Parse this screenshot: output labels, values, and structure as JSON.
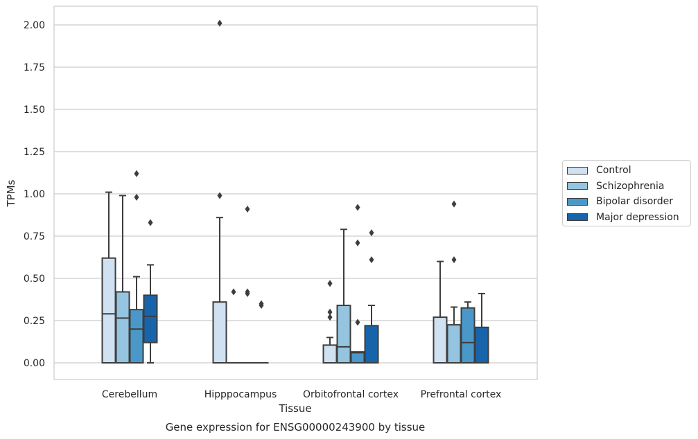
{
  "chart_data": {
    "type": "box",
    "title": "",
    "caption": "Gene expression for ENSG00000243900 by tissue",
    "xlabel": "Tissue",
    "ylabel": "TPMs",
    "ylim": [
      -0.1,
      2.1
    ],
    "yticks": [
      "0.00",
      "0.25",
      "0.50",
      "0.75",
      "1.00",
      "1.25",
      "1.50",
      "1.75",
      "2.00"
    ],
    "categories": [
      "Cerebellum",
      "Hipppocampus",
      "Orbitofrontal cortex",
      "Prefrontal cortex"
    ],
    "grid": "y",
    "legend_placement": "center-right outside",
    "series": [
      {
        "name": "Control",
        "color": "#d0e1f2",
        "boxes": [
          {
            "whislo": 0.0,
            "q1": 0.0,
            "med": 0.29,
            "q3": 0.62,
            "whishi": 1.01,
            "fliers": []
          },
          {
            "whislo": 0.0,
            "q1": 0.0,
            "med": 0.0,
            "q3": 0.36,
            "whishi": 0.86,
            "fliers": [
              0.99,
              2.01
            ]
          },
          {
            "whislo": 0.0,
            "q1": 0.0,
            "med": 0.0,
            "q3": 0.105,
            "whishi": 0.15,
            "fliers": [
              0.47,
              0.3,
              0.27
            ]
          },
          {
            "whislo": 0.0,
            "q1": 0.0,
            "med": 0.0,
            "q3": 0.27,
            "whishi": 0.6,
            "fliers": []
          }
        ]
      },
      {
        "name": "Schizophrenia",
        "color": "#94c4df",
        "boxes": [
          {
            "whislo": 0.0,
            "q1": 0.0,
            "med": 0.265,
            "q3": 0.42,
            "whishi": 0.99,
            "fliers": []
          },
          {
            "whislo": 0.0,
            "q1": 0.0,
            "med": 0.0,
            "q3": 0.0,
            "whishi": 0.0,
            "fliers": [
              0.42
            ]
          },
          {
            "whislo": 0.0,
            "q1": 0.0,
            "med": 0.095,
            "q3": 0.34,
            "whishi": 0.79,
            "fliers": []
          },
          {
            "whislo": 0.0,
            "q1": 0.0,
            "med": 0.0,
            "q3": 0.225,
            "whishi": 0.33,
            "fliers": [
              0.94,
              0.61
            ]
          }
        ]
      },
      {
        "name": "Bipolar disorder",
        "color": "#4a98c9",
        "boxes": [
          {
            "whislo": 0.0,
            "q1": 0.0,
            "med": 0.2,
            "q3": 0.315,
            "whishi": 0.51,
            "fliers": [
              1.12,
              0.98
            ]
          },
          {
            "whislo": 0.0,
            "q1": 0.0,
            "med": 0.0,
            "q3": 0.0,
            "whishi": 0.0,
            "fliers": [
              0.91,
              0.42,
              0.41
            ]
          },
          {
            "whislo": 0.0,
            "q1": 0.0,
            "med": 0.06,
            "q3": 0.065,
            "whishi": 0.065,
            "fliers": [
              0.92,
              0.71,
              0.24
            ]
          },
          {
            "whislo": 0.0,
            "q1": 0.0,
            "med": 0.12,
            "q3": 0.325,
            "whishi": 0.36,
            "fliers": []
          }
        ]
      },
      {
        "name": "Major depression",
        "color": "#1764ab",
        "boxes": [
          {
            "whislo": 0.0,
            "q1": 0.12,
            "med": 0.275,
            "q3": 0.4,
            "whishi": 0.58,
            "fliers": [
              0.83
            ]
          },
          {
            "whislo": 0.0,
            "q1": 0.0,
            "med": 0.0,
            "q3": 0.0,
            "whishi": 0.0,
            "fliers": [
              0.35,
              0.34
            ]
          },
          {
            "whislo": 0.0,
            "q1": 0.0,
            "med": 0.0,
            "q3": 0.22,
            "whishi": 0.34,
            "fliers": [
              0.77,
              0.61
            ]
          },
          {
            "whislo": 0.0,
            "q1": 0.0,
            "med": 0.0,
            "q3": 0.21,
            "whishi": 0.41,
            "fliers": []
          }
        ]
      }
    ]
  }
}
